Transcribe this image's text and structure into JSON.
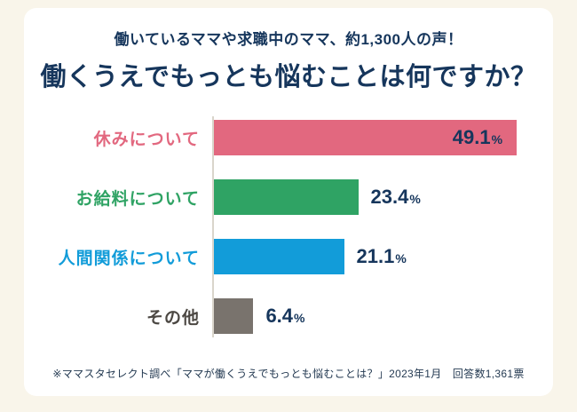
{
  "header": {
    "subtitle": "働いているママや求職中のママ、約1,300人の声！",
    "title": "働くうえでもっとも悩むことは何ですか？"
  },
  "chart_data": {
    "type": "bar",
    "orientation": "horizontal",
    "title": "働くうえでもっとも悩むことは何ですか？",
    "subtitle": "働いているママや求職中のママ、約1,300人の声！",
    "categories": [
      "休みについて",
      "お給料について",
      "人間関係について",
      "その他"
    ],
    "values": [
      49.1,
      23.4,
      21.1,
      6.4
    ],
    "unit": "%",
    "xlim": [
      0,
      55
    ],
    "grid": false,
    "legend": false,
    "rows": [
      {
        "label": "休みについて",
        "value": 49.1,
        "display": "49.1",
        "color": "#e2687f",
        "label_color": "#e2687f",
        "value_position": "inside"
      },
      {
        "label": "お給料について",
        "value": 23.4,
        "display": "23.4",
        "color": "#2fa364",
        "label_color": "#2fa364",
        "value_position": "outside"
      },
      {
        "label": "人間関係について",
        "value": 21.1,
        "display": "21.1",
        "color": "#129cd9",
        "label_color": "#129cd9",
        "value_position": "outside"
      },
      {
        "label": "その他",
        "value": 6.4,
        "display": "6.4",
        "color": "#79736d",
        "label_color": "#4c4843",
        "value_position": "outside"
      }
    ]
  },
  "footer": {
    "note": "※ママスタセレクト調べ「ママが働くうえでもっとも悩むことは？」2023年1月　回答数1,361票"
  },
  "colors": {
    "page_background": "#f9f5ea",
    "card_background": "#ffffff",
    "navy_text": "#16365c",
    "baseline": "#d9d5cb"
  }
}
